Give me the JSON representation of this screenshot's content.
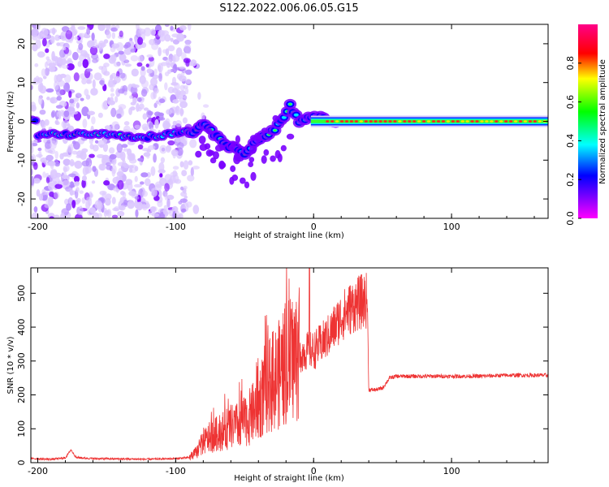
{
  "title": "S122.2022.006.06.05.G15",
  "chart_data": [
    {
      "type": "heatmap",
      "xlabel": "Height of straight line (km)",
      "ylabel": "Frequency (Hz)",
      "xlim": [
        -205,
        170
      ],
      "ylim": [
        -25,
        25
      ],
      "xticks": [
        -200,
        -100,
        0,
        100
      ],
      "xtick_labels": [
        "-200",
        "-100",
        "0",
        "100"
      ],
      "yticks": [
        -20,
        -10,
        0,
        10,
        20
      ],
      "ytick_labels": [
        "-20",
        "-10",
        "0",
        "10",
        "20"
      ],
      "colorbar": {
        "label": "Normalized spectral amplitude",
        "range": [
          0,
          1
        ],
        "ticks": [
          0,
          0.2,
          0.4,
          0.6,
          0.8
        ],
        "tick_labels": [
          "0.0",
          "0.2",
          "0.4",
          "0.6",
          "0.8"
        ],
        "colormap": "hsv-like (magenta-blue-cyan-green-yellow-red-magenta)"
      },
      "ridge": [
        {
          "x": -200,
          "y": -3.5
        },
        {
          "x": -160,
          "y": -3
        },
        {
          "x": -120,
          "y": -4
        },
        {
          "x": -100,
          "y": -3
        },
        {
          "x": -85,
          "y": -2.5
        },
        {
          "x": -80,
          "y": 0
        },
        {
          "x": -65,
          "y": -6
        },
        {
          "x": -50,
          "y": -8
        },
        {
          "x": -40,
          "y": -5
        },
        {
          "x": -25,
          "y": -1
        },
        {
          "x": -17,
          "y": 4
        },
        {
          "x": -10,
          "y": 0
        },
        {
          "x": 0,
          "y": 1
        },
        {
          "x": 20,
          "y": 0
        },
        {
          "x": 170,
          "y": 0
        }
      ],
      "scatter_region": {
        "x": [
          -205,
          -90
        ],
        "y": [
          -25,
          25
        ]
      }
    },
    {
      "type": "line",
      "xlabel": "Height of straight line (km)",
      "ylabel": "SNR (10 * v/v)",
      "xlim": [
        -205,
        170
      ],
      "ylim": [
        0,
        575
      ],
      "xticks": [
        -200,
        -100,
        0,
        100
      ],
      "xtick_labels": [
        "-200",
        "-100",
        "0",
        "100"
      ],
      "yticks": [
        0,
        100,
        200,
        300,
        400,
        500
      ],
      "ytick_labels": [
        "0",
        "100",
        "200",
        "300",
        "400",
        "500"
      ],
      "color": "#ee3333",
      "series": [
        {
          "x": [
            -205,
            -190,
            -180,
            -176,
            -172,
            -160,
            -140,
            -120,
            -100,
            -90,
            -85,
            -80,
            -75,
            -70,
            -65,
            -60,
            -55,
            -50,
            -45,
            -40,
            -35,
            -30,
            -25,
            -20,
            -15,
            -10,
            -5,
            0,
            5,
            10,
            15,
            20,
            25,
            30,
            35,
            39,
            40,
            45,
            50,
            55,
            60,
            80,
            100,
            120,
            140,
            160,
            170
          ],
          "y": [
            12,
            10,
            14,
            38,
            15,
            12,
            11,
            10,
            12,
            15,
            30,
            60,
            75,
            85,
            95,
            105,
            110,
            120,
            140,
            170,
            220,
            240,
            260,
            290,
            310,
            320,
            330,
            330,
            350,
            370,
            400,
            430,
            450,
            465,
            475,
            480,
            215,
            215,
            220,
            250,
            255,
            255,
            255,
            255,
            258,
            258,
            258
          ]
        }
      ]
    }
  ]
}
